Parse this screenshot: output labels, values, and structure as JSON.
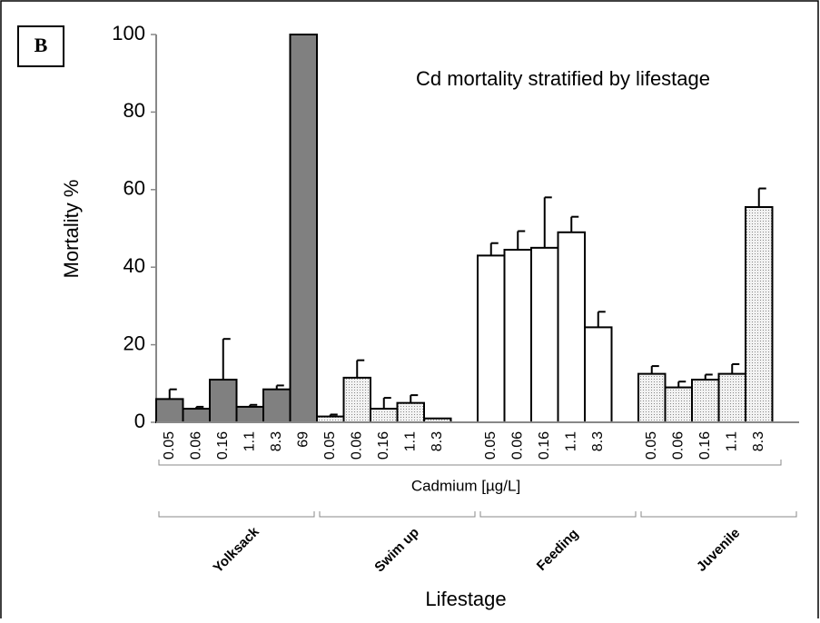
{
  "chart_data": {
    "type": "bar",
    "panel_label": "B",
    "title": "Cd mortality stratified by lifestage",
    "y_label": "Mortality %",
    "x_label": "Cadmium [µg/L]",
    "group_label": "Lifestage",
    "categories": [
      "0.05",
      "0.06",
      "0.16",
      "1.1",
      "8.3",
      "69",
      "0.05",
      "0.06",
      "0.16",
      "1.1",
      "8.3",
      null,
      "0.05",
      "0.06",
      "0.16",
      "1.1",
      "8.3",
      null,
      "0.05",
      "0.06",
      "0.16",
      "1.1",
      "8.3",
      null
    ],
    "series": [
      {
        "name": "Yolksack",
        "color": "#808080",
        "pattern": false,
        "values": [
          6,
          3.5,
          11,
          4,
          8.5,
          100,
          null,
          null,
          null,
          null,
          null,
          null,
          null,
          null,
          null,
          null,
          null,
          null,
          null,
          null,
          null,
          null,
          null,
          null
        ],
        "errors": [
          2.5,
          0.5,
          10.5,
          0.5,
          1,
          0,
          null,
          null,
          null,
          null,
          null,
          null,
          null,
          null,
          null,
          null,
          null,
          null,
          null,
          null,
          null,
          null,
          null,
          null
        ]
      },
      {
        "name": "Swim up",
        "color": "#b0b0b0",
        "pattern": true,
        "values": [
          null,
          null,
          null,
          null,
          null,
          null,
          1.5,
          11.5,
          3.5,
          5,
          1,
          null,
          null,
          null,
          null,
          null,
          null,
          null,
          null,
          null,
          null,
          null,
          null,
          null
        ],
        "errors": [
          null,
          null,
          null,
          null,
          null,
          null,
          0.5,
          4.5,
          2.8,
          2,
          0,
          null,
          null,
          null,
          null,
          null,
          null,
          null,
          null,
          null,
          null,
          null,
          null,
          null
        ]
      },
      {
        "name": "Feeding",
        "color": "#ffffff",
        "pattern": false,
        "values": [
          null,
          null,
          null,
          null,
          null,
          null,
          null,
          null,
          null,
          null,
          null,
          null,
          43,
          44.5,
          45,
          49,
          24.5,
          null,
          null,
          null,
          null,
          null,
          null,
          null
        ],
        "errors": [
          null,
          null,
          null,
          null,
          null,
          null,
          null,
          null,
          null,
          null,
          null,
          null,
          3.2,
          4.8,
          13,
          4,
          4,
          null,
          null,
          null,
          null,
          null,
          null,
          null
        ]
      },
      {
        "name": "Juvenile",
        "color": "#b0b0b0",
        "pattern": true,
        "values": [
          null,
          null,
          null,
          null,
          null,
          null,
          null,
          null,
          null,
          null,
          null,
          null,
          null,
          null,
          null,
          null,
          null,
          null,
          12.5,
          9,
          11,
          12.5,
          55.5,
          null
        ],
        "errors": [
          null,
          null,
          null,
          null,
          null,
          null,
          null,
          null,
          null,
          null,
          null,
          null,
          null,
          null,
          null,
          null,
          null,
          null,
          2,
          1.5,
          1.3,
          2.5,
          4.8,
          null
        ]
      }
    ],
    "ylim": [
      0,
      100
    ],
    "yticks": [
      0,
      20,
      40,
      60,
      80,
      100
    ],
    "grid": false
  }
}
